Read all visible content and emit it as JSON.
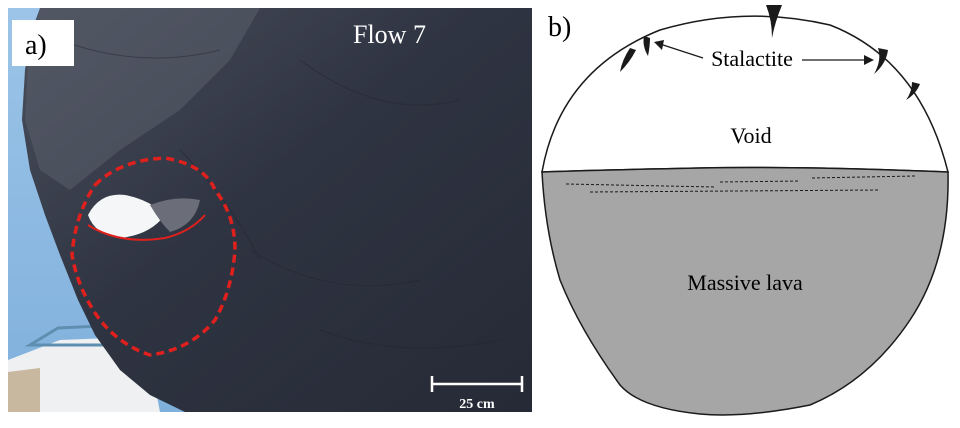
{
  "panel_a": {
    "label": "a)",
    "title": "Flow 7",
    "scale_bar_label": "25 cm"
  },
  "panel_b": {
    "label": "b)",
    "stalactite_label": "Stalactite",
    "void_label": "Void",
    "lava_label": "Massive lava"
  },
  "colors": {
    "sky": "#8fb9e0",
    "rock": "#2f3340",
    "outline_red": "#e0201c",
    "lava_fill": "#a6a6a6",
    "line": "#1a1a1a"
  }
}
